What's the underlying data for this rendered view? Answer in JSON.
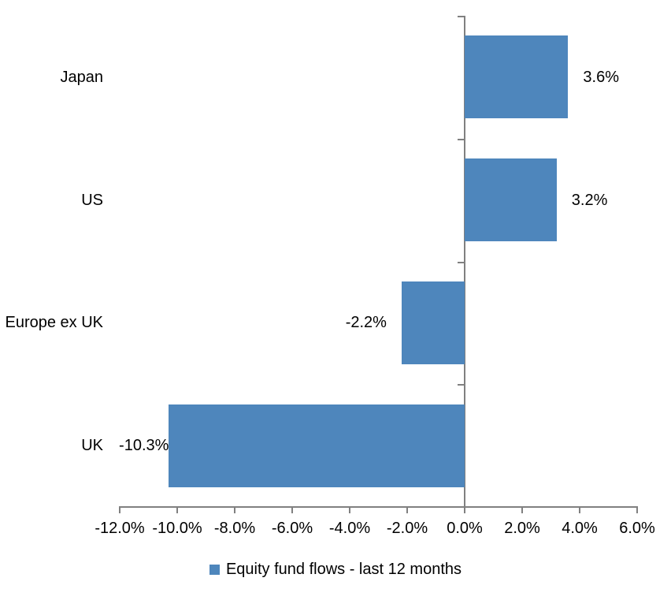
{
  "chart_data": {
    "type": "bar",
    "orientation": "horizontal",
    "title": "",
    "categories": [
      "Japan",
      "US",
      "Europe ex UK",
      "UK"
    ],
    "series": [
      {
        "name": "Equity fund flows - last 12 months",
        "values": [
          3.6,
          3.2,
          -2.2,
          -10.3
        ],
        "data_labels": [
          "3.6%",
          "3.2%",
          "-2.2%",
          "-10.3%"
        ]
      }
    ],
    "xlim": [
      -12,
      6
    ],
    "x_ticks": [
      -12,
      -10,
      -8,
      -6,
      -4,
      -2,
      0,
      2,
      4,
      6
    ],
    "x_tick_labels": [
      "-12.0%",
      "-10.0%",
      "-8.0%",
      "-6.0%",
      "-4.0%",
      "-2.0%",
      "0.0%",
      "2.0%",
      "4.0%",
      "6.0%"
    ],
    "grid": false,
    "legend_position": "bottom",
    "colors": {
      "bar": "#4E86BC",
      "axis": "#808080",
      "text": "#000000"
    }
  }
}
